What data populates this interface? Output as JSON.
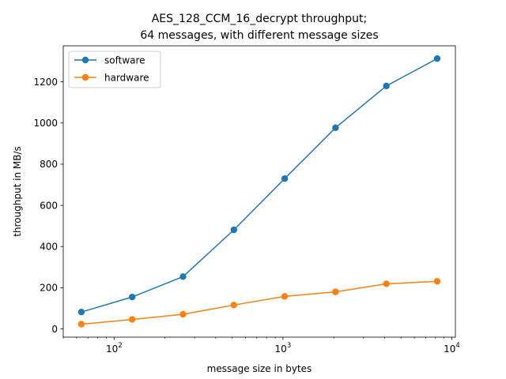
{
  "chart_data": {
    "type": "line",
    "title": [
      "AES_128_CCM_16_decrypt throughput;",
      "64 messages, with different message sizes"
    ],
    "xlabel": "message size in bytes",
    "ylabel": "throughput in MB/s",
    "xscale": "log",
    "xlim": [
      50,
      10500
    ],
    "ylim": [
      -40,
      1375
    ],
    "x": [
      64,
      128,
      256,
      512,
      1024,
      2048,
      4096,
      8192
    ],
    "x_ticks": [
      100,
      1000,
      10000
    ],
    "x_tick_labels": [
      {
        "base": "10",
        "exp": "2"
      },
      {
        "base": "10",
        "exp": "3"
      },
      {
        "base": "10",
        "exp": "4"
      }
    ],
    "y_ticks": [
      0,
      200,
      400,
      600,
      800,
      1000,
      1200
    ],
    "y_tick_labels": [
      "0",
      "200",
      "400",
      "600",
      "800",
      "1000",
      "1200"
    ],
    "legend_position": "top-left",
    "grid": false,
    "series": [
      {
        "name": "software",
        "color": "#1f77b4",
        "values": [
          82,
          155,
          254,
          481,
          730,
          977,
          1180,
          1313
        ]
      },
      {
        "name": "hardware",
        "color": "#ff7f0e",
        "values": [
          23,
          46,
          71,
          116,
          158,
          180,
          219,
          231
        ]
      }
    ]
  }
}
